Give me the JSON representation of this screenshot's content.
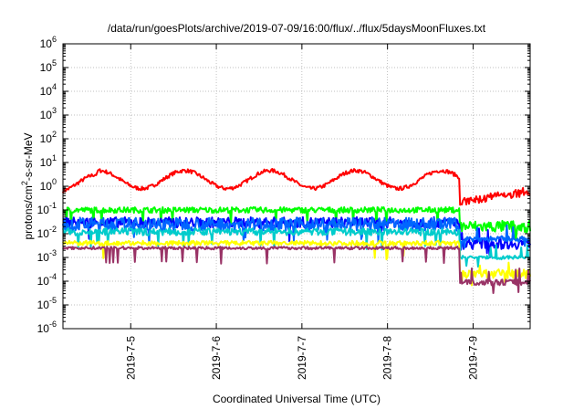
{
  "chart_data": {
    "type": "line",
    "title": "/data/run/goesPlots/archive/2019-07-09/16:00/flux/../flux/5daysMoonFluxes.txt",
    "xlabel": "Coordinated Universal Time (UTC)",
    "ylabel": {
      "prefix": "protons/cm",
      "superscript": "2",
      "suffix": "-s-sr-MeV"
    },
    "yscale": "log",
    "ylim": [
      1e-06,
      1000000.0
    ],
    "yticks": [
      {
        "mant": "10",
        "exp": "-6",
        "value": 1e-06
      },
      {
        "mant": "10",
        "exp": "-5",
        "value": 1e-05
      },
      {
        "mant": "10",
        "exp": "-4",
        "value": 0.0001
      },
      {
        "mant": "10",
        "exp": "-3",
        "value": 0.001
      },
      {
        "mant": "10",
        "exp": "-2",
        "value": 0.01
      },
      {
        "mant": "10",
        "exp": "-1",
        "value": 0.1
      },
      {
        "mant": "10",
        "exp": "0",
        "value": 1
      },
      {
        "mant": "10",
        "exp": "1",
        "value": 10
      },
      {
        "mant": "10",
        "exp": "2",
        "value": 100
      },
      {
        "mant": "10",
        "exp": "3",
        "value": 1000
      },
      {
        "mant": "10",
        "exp": "4",
        "value": 10000
      },
      {
        "mant": "10",
        "exp": "5",
        "value": 100000
      },
      {
        "mant": "10",
        "exp": "6",
        "value": 1000000
      }
    ],
    "xlim": [
      "2019-07-04 05:00",
      "2019-07-09 16:00"
    ],
    "xticks": [
      {
        "label": "2019-7-5",
        "value": "2019-07-05 00:00"
      },
      {
        "label": "2019-7-6",
        "value": "2019-07-06 00:00"
      },
      {
        "label": "2019-7-7",
        "value": "2019-07-07 00:00"
      },
      {
        "label": "2019-7-8",
        "value": "2019-07-08 00:00"
      },
      {
        "label": "2019-7-9",
        "value": "2019-07-09 00:00"
      }
    ],
    "grid": true,
    "legend": "none",
    "series": [
      {
        "color": "#ff0000",
        "style": "wave",
        "base": 0.8,
        "amp": 5,
        "period": 1.0,
        "phase": 0.42,
        "noise": 0.08,
        "late": 0.2,
        "lateNoise": 0.18
      },
      {
        "color": "#00ff00",
        "style": "noisy",
        "base": 0.1,
        "noise": 0.12,
        "late": 0.02,
        "lateNoise": 0.25
      },
      {
        "color": "#0000ff",
        "style": "noisy",
        "base": 0.03,
        "noise": 0.22,
        "late": 0.004,
        "lateNoise": 0.25
      },
      {
        "color": "#0066ff",
        "style": "noisy",
        "base": 0.025,
        "noise": 0.28,
        "late": 0.006,
        "lateNoise": 0.12
      },
      {
        "color": "#00cccc",
        "style": "noisy",
        "base": 0.012,
        "noise": 0.15,
        "late": 0.001,
        "lateNoise": 0.08
      },
      {
        "color": "#ffff00",
        "style": "noisy",
        "base": 0.004,
        "noise": 0.1,
        "late": 0.0002,
        "lateNoise": 0.2
      },
      {
        "color": "#993366",
        "style": "noisy",
        "base": 0.0025,
        "noise": 0.06,
        "late": 9e-05,
        "lateNoise": 0.12
      }
    ],
    "dropDay": 4.63
  }
}
